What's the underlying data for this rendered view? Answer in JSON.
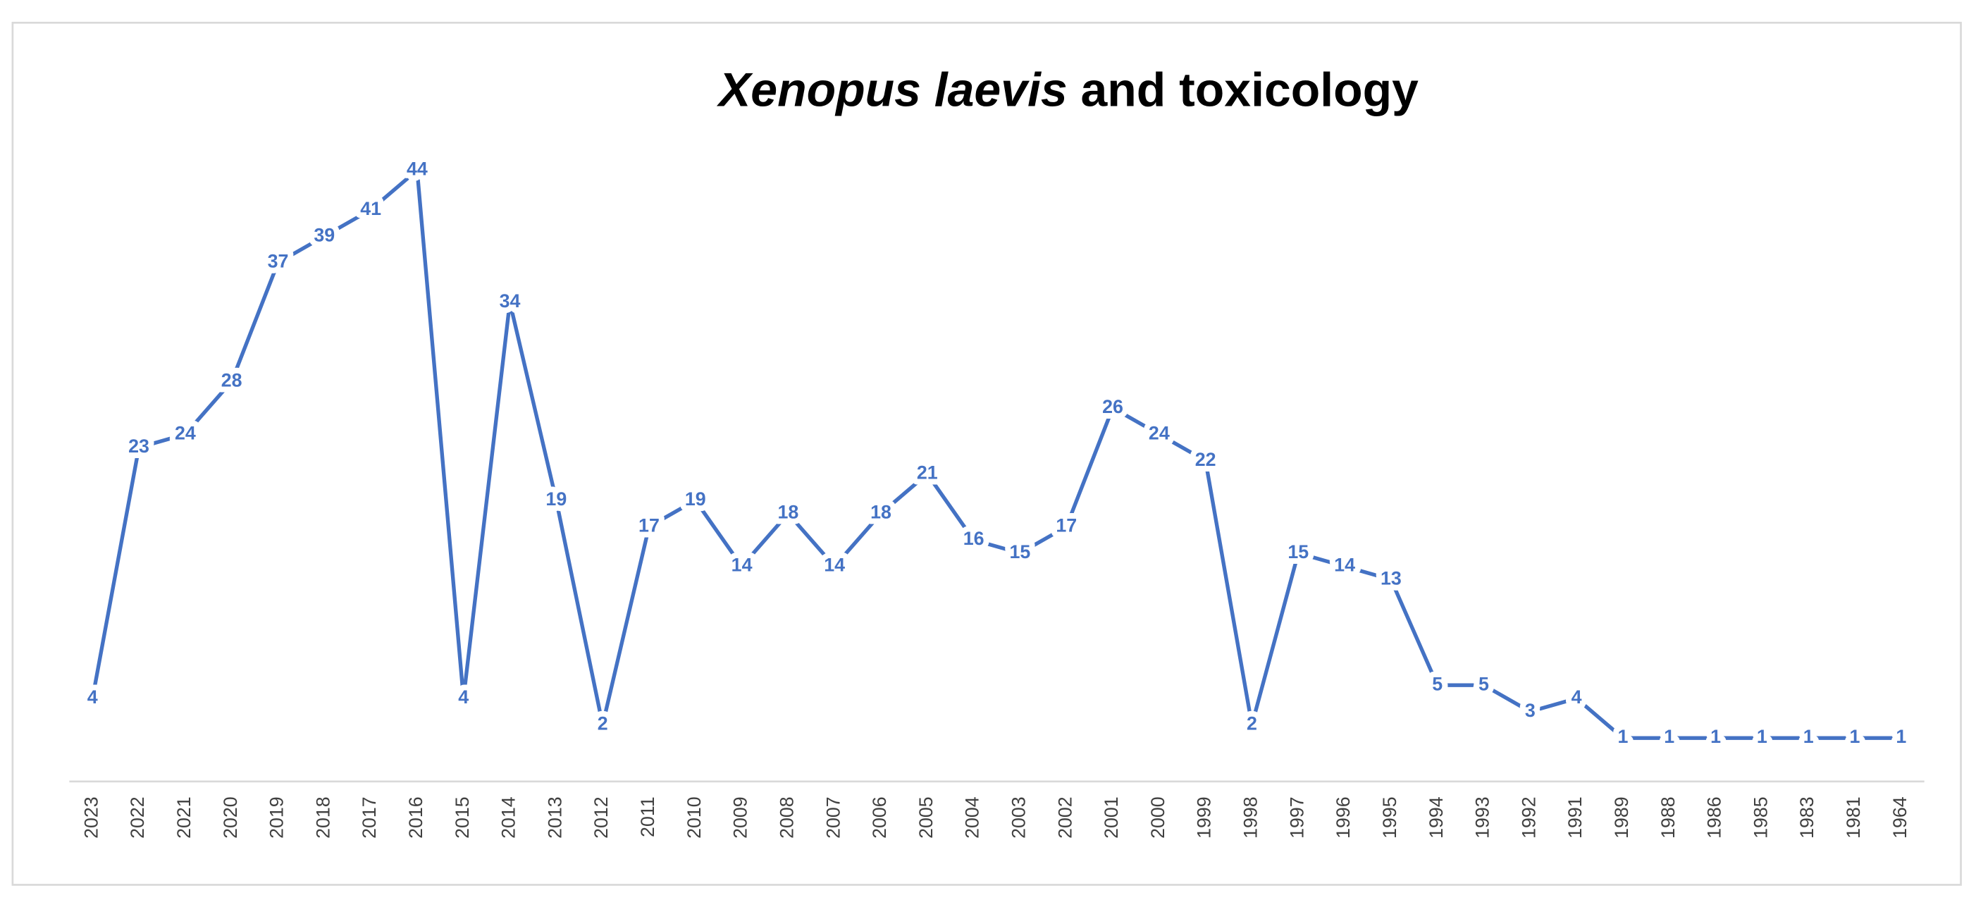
{
  "chart_data": {
    "type": "line",
    "title": {
      "italic": "Xenopus laevis",
      "text": "and toxicology"
    },
    "categories": [
      "2023",
      "2022",
      "2021",
      "2020",
      "2019",
      "2018",
      "2017",
      "2016",
      "2015",
      "2014",
      "2013",
      "2012",
      "2011",
      "2010",
      "2009",
      "2008",
      "2007",
      "2006",
      "2005",
      "2004",
      "2003",
      "2002",
      "2001",
      "2000",
      "1999",
      "1998",
      "1997",
      "1996",
      "1995",
      "1994",
      "1993",
      "1992",
      "1991",
      "1989",
      "1988",
      "1986",
      "1985",
      "1983",
      "1981",
      "1964"
    ],
    "values": [
      4,
      23,
      24,
      28,
      37,
      39,
      41,
      44,
      4,
      34,
      19,
      2,
      17,
      19,
      14,
      18,
      14,
      18,
      21,
      16,
      15,
      17,
      26,
      24,
      22,
      2,
      15,
      14,
      13,
      5,
      5,
      3,
      4,
      1,
      1,
      1,
      1,
      1,
      1,
      1
    ],
    "color": "#4472c4"
  }
}
